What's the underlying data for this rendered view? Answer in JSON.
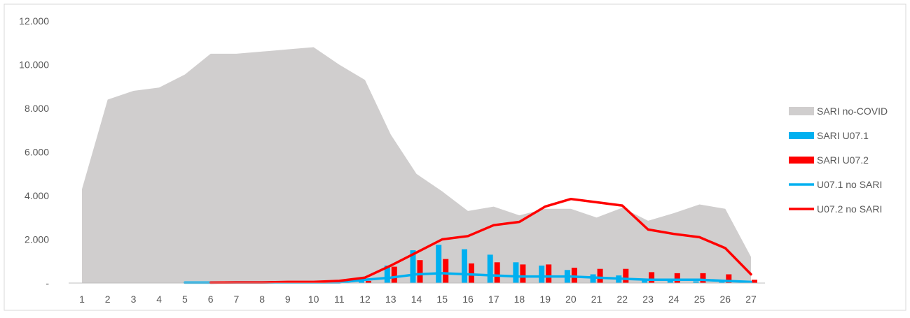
{
  "chart_data": {
    "type": "area",
    "title": "",
    "xlabel": "",
    "ylabel": "",
    "categories": [
      "1",
      "2",
      "3",
      "4",
      "5",
      "6",
      "7",
      "8",
      "9",
      "10",
      "11",
      "12",
      "13",
      "14",
      "15",
      "16",
      "17",
      "18",
      "19",
      "20",
      "21",
      "22",
      "23",
      "24",
      "25",
      "26",
      "27"
    ],
    "ylim": [
      0,
      12000
    ],
    "y_ticks": [
      {
        "value": 0,
        "label": "-"
      },
      {
        "value": 2000,
        "label": "2.000"
      },
      {
        "value": 4000,
        "label": "4.000"
      },
      {
        "value": 6000,
        "label": "6.000"
      },
      {
        "value": 8000,
        "label": "8.000"
      },
      {
        "value": 10000,
        "label": "10.000"
      },
      {
        "value": 12000,
        "label": "12.000"
      }
    ],
    "grid": false,
    "legend_position": "right",
    "series": [
      {
        "name": "SARI no-COVID",
        "kind": "area",
        "color": "#d0cece",
        "values": [
          4300,
          8400,
          8800,
          8950,
          9550,
          10500,
          10500,
          10600,
          10700,
          10800,
          10000,
          9300,
          6800,
          5000,
          4200,
          3300,
          3500,
          3100,
          3400,
          3400,
          3000,
          3450,
          2850,
          3200,
          3600,
          3400,
          1200
        ]
      },
      {
        "name": "SARI U07.1",
        "kind": "bar",
        "color": "#00b0f0",
        "values": [
          0,
          0,
          0,
          0,
          0,
          0,
          0,
          0,
          0,
          0,
          0,
          150,
          800,
          1500,
          1750,
          1550,
          1300,
          950,
          800,
          600,
          400,
          350,
          200,
          100,
          80,
          50,
          30
        ]
      },
      {
        "name": "SARI U07.2",
        "kind": "bar",
        "color": "#ff0000",
        "values": [
          0,
          0,
          0,
          0,
          0,
          0,
          0,
          0,
          0,
          0,
          0,
          100,
          750,
          1050,
          1100,
          900,
          950,
          850,
          850,
          700,
          650,
          650,
          500,
          450,
          450,
          400,
          150
        ]
      },
      {
        "name": "U07.1 no SARI",
        "kind": "line",
        "color": "#00b0f0",
        "values": [
          null,
          null,
          null,
          null,
          20,
          20,
          30,
          30,
          30,
          30,
          30,
          150,
          250,
          400,
          450,
          400,
          350,
          300,
          300,
          300,
          250,
          200,
          150,
          150,
          150,
          100,
          50
        ]
      },
      {
        "name": "U07.2 no SARI",
        "kind": "line",
        "color": "#ff0000",
        "values": [
          null,
          null,
          null,
          null,
          null,
          20,
          30,
          30,
          50,
          50,
          100,
          250,
          800,
          1400,
          2000,
          2150,
          2650,
          2800,
          3500,
          3850,
          3700,
          3550,
          2450,
          2250,
          2100,
          1600,
          400
        ]
      }
    ]
  }
}
